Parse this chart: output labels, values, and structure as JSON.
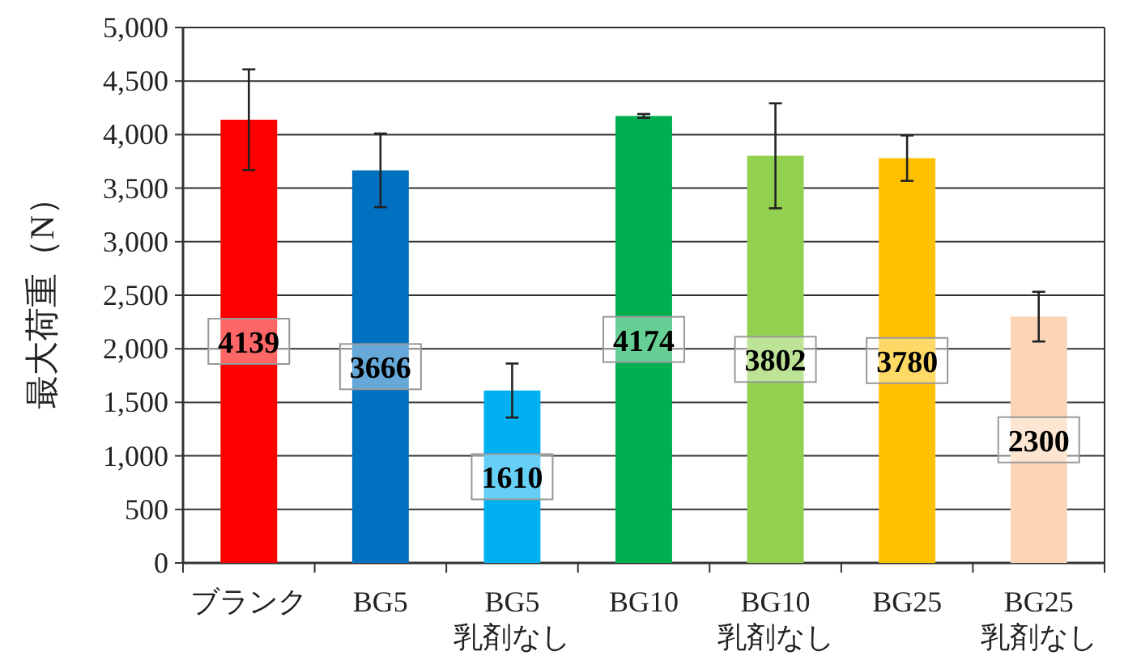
{
  "chart_data": {
    "type": "bar",
    "ylabel": "最大荷重（N）",
    "categories": [
      "ブランク",
      "BG5",
      "BG5\n乳剤なし",
      "BG10",
      "BG10\n乳剤なし",
      "BG25",
      "BG25\n乳剤なし"
    ],
    "values": [
      4139,
      3666,
      1610,
      4174,
      3802,
      3780,
      2300
    ],
    "colors": [
      "#ff0000",
      "#0070c0",
      "#00b0f0",
      "#00b050",
      "#92d050",
      "#ffc000",
      "#fbd5b5"
    ],
    "errors": [
      470,
      344,
      252,
      18,
      490,
      212,
      232
    ],
    "ylim": [
      0,
      5000
    ],
    "yticks": [
      {
        "value": 0,
        "label": "0"
      },
      {
        "value": 500,
        "label": "500"
      },
      {
        "value": 1000,
        "label": "1,000"
      },
      {
        "value": 1500,
        "label": "1,500"
      },
      {
        "value": 2000,
        "label": "2,000"
      },
      {
        "value": 2500,
        "label": "2,500"
      },
      {
        "value": 3000,
        "label": "3,000"
      },
      {
        "value": 3500,
        "label": "3,500"
      },
      {
        "value": 4000,
        "label": "4,000"
      },
      {
        "value": 4500,
        "label": "4,500"
      },
      {
        "value": 5000,
        "label": "5,000"
      }
    ],
    "grid": "y",
    "data_labels": true
  }
}
